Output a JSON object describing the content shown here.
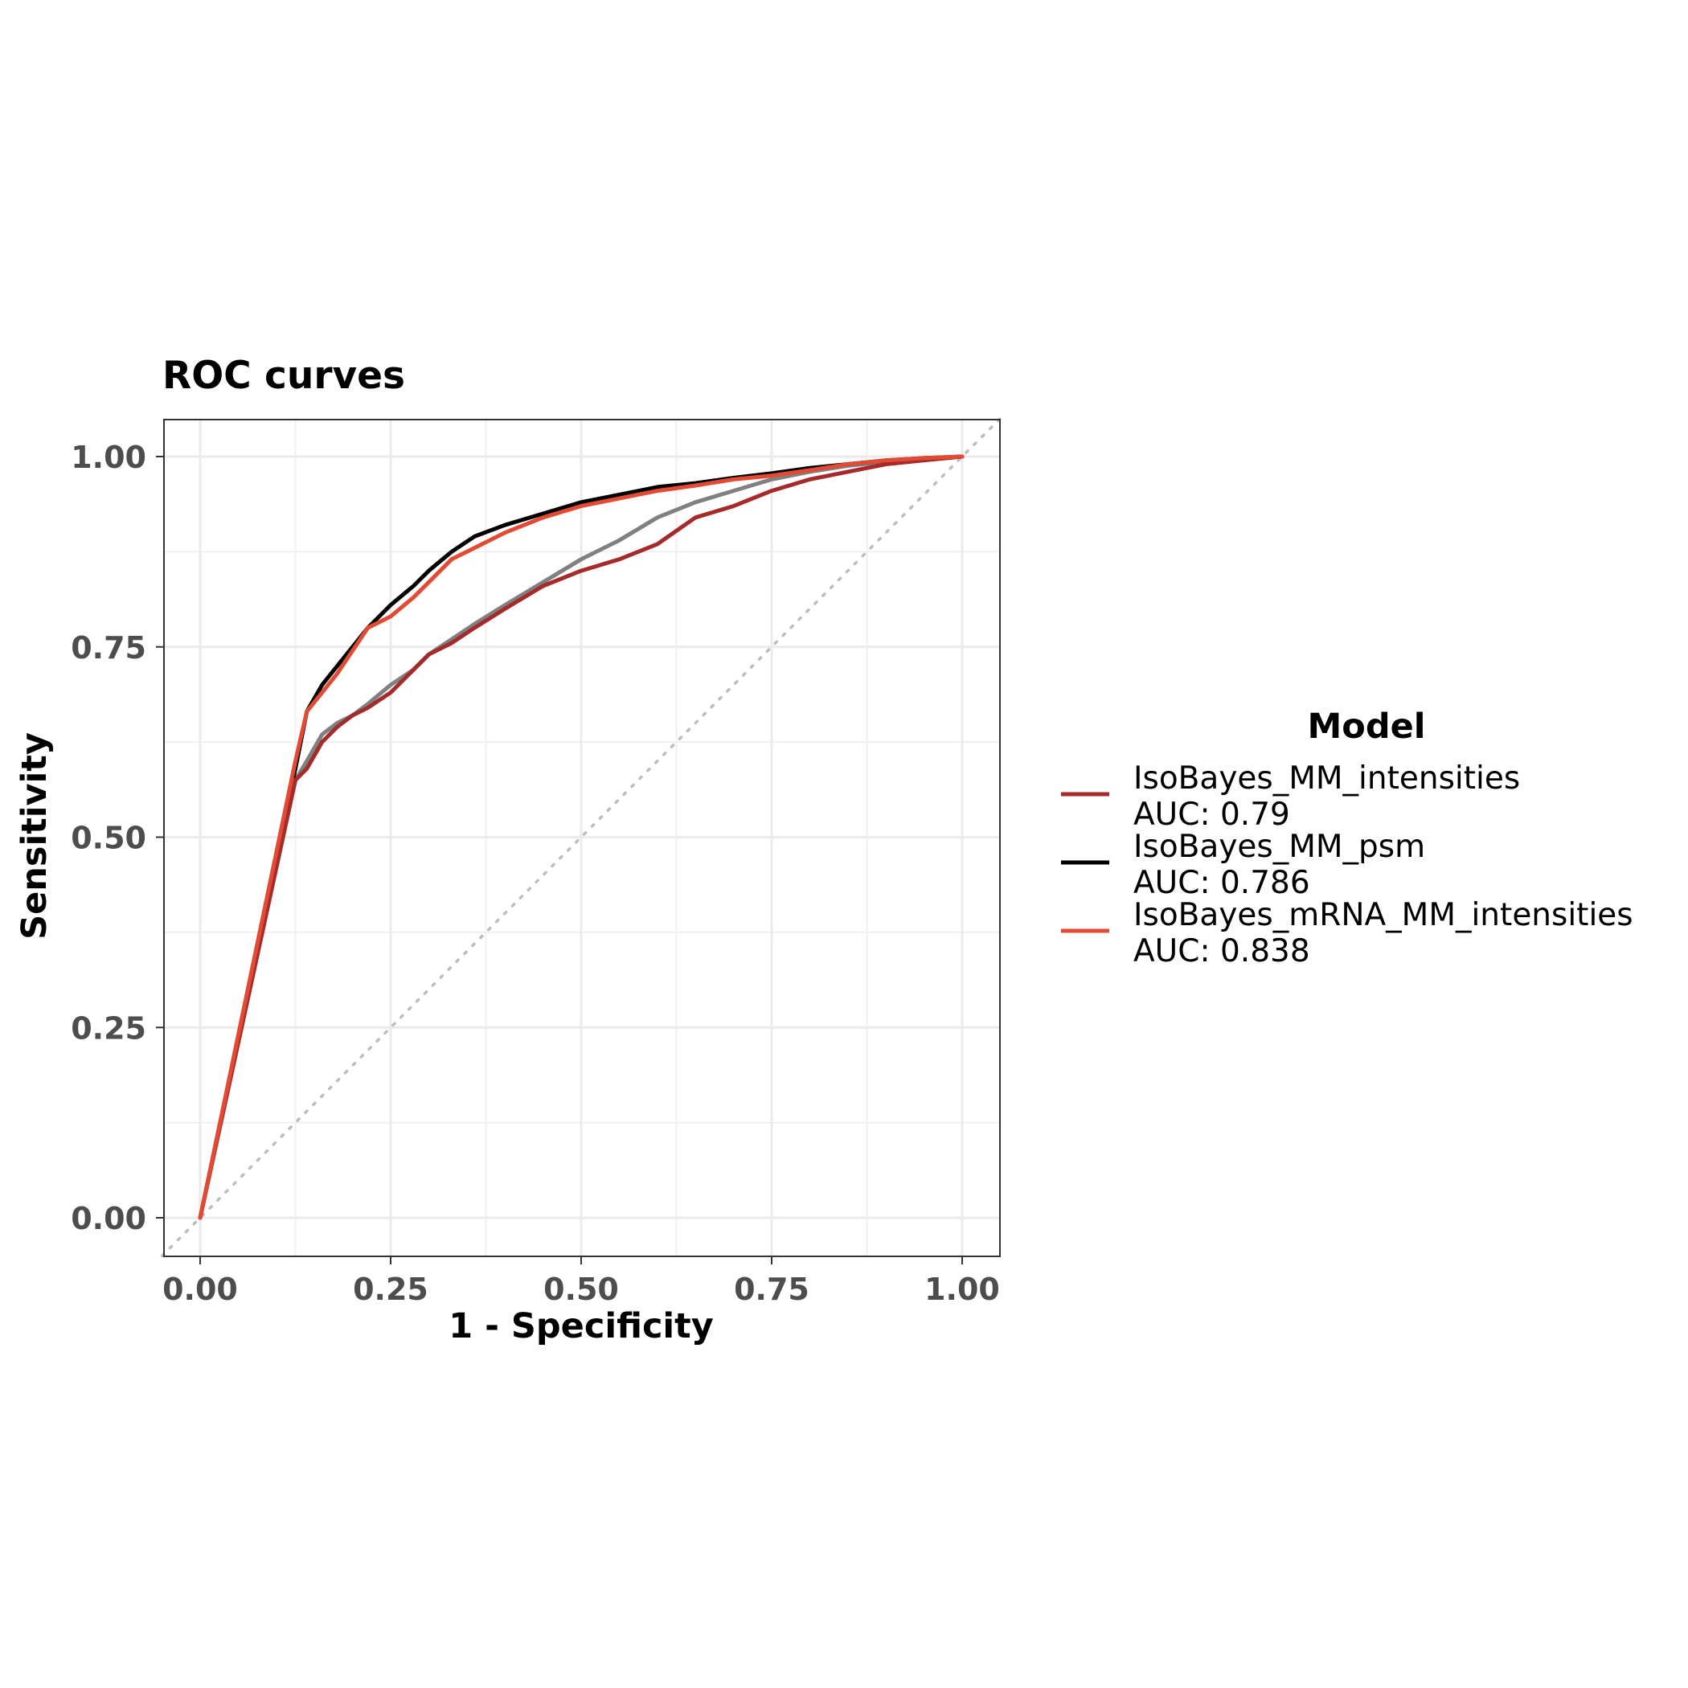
{
  "chart_data": {
    "type": "line",
    "title": "ROC curves",
    "xlabel": "1 - Specificity",
    "ylabel": "Sensitivity",
    "xlim": [
      0,
      1
    ],
    "ylim": [
      0,
      1
    ],
    "x_ticks": [
      "0.00",
      "0.25",
      "0.50",
      "0.75",
      "1.00"
    ],
    "y_ticks": [
      "0.00",
      "0.25",
      "0.50",
      "0.75",
      "1.00"
    ],
    "grid": true,
    "legend_position": "right",
    "legend_title": "Model",
    "reference_line": {
      "style": "dotted",
      "color": "#bdbdbd",
      "x": [
        0,
        1
      ],
      "y": [
        0,
        1
      ]
    },
    "series": [
      {
        "name": "IsoBayes_MM_intensities",
        "auc_label": "AUC: 0.79",
        "color": "#a52a2a",
        "x": [
          0,
          0.125,
          0.14,
          0.16,
          0.18,
          0.2,
          0.22,
          0.25,
          0.28,
          0.3,
          0.33,
          0.36,
          0.4,
          0.45,
          0.5,
          0.55,
          0.6,
          0.65,
          0.7,
          0.75,
          0.8,
          0.85,
          0.9,
          0.95,
          1.0
        ],
        "y": [
          0,
          0.575,
          0.59,
          0.625,
          0.645,
          0.66,
          0.67,
          0.69,
          0.72,
          0.74,
          0.755,
          0.775,
          0.8,
          0.83,
          0.85,
          0.865,
          0.885,
          0.92,
          0.935,
          0.955,
          0.97,
          0.98,
          0.99,
          0.995,
          1.0
        ]
      },
      {
        "name": "IsoBayes_MM_psm",
        "auc_label": "AUC: 0.786",
        "color": "#000000",
        "x": [
          0,
          0.125,
          0.14,
          0.16,
          0.18,
          0.2,
          0.22,
          0.25,
          0.28,
          0.3,
          0.33,
          0.36,
          0.4,
          0.45,
          0.5,
          0.55,
          0.6,
          0.65,
          0.7,
          0.75,
          0.8,
          0.85,
          0.9,
          0.95,
          1.0
        ],
        "y": [
          0,
          0.59,
          0.665,
          0.7,
          0.725,
          0.75,
          0.775,
          0.805,
          0.83,
          0.85,
          0.875,
          0.895,
          0.91,
          0.925,
          0.94,
          0.95,
          0.96,
          0.965,
          0.972,
          0.978,
          0.985,
          0.99,
          0.995,
          0.998,
          1.0
        ]
      },
      {
        "name": "IsoBayes_mRNA_MM_intensities",
        "auc_label": "AUC: 0.838",
        "color": "#e34a33",
        "x": [
          0,
          0.125,
          0.14,
          0.16,
          0.18,
          0.2,
          0.22,
          0.25,
          0.28,
          0.3,
          0.33,
          0.36,
          0.4,
          0.45,
          0.5,
          0.55,
          0.6,
          0.65,
          0.7,
          0.75,
          0.8,
          0.85,
          0.9,
          0.95,
          1.0
        ],
        "y": [
          0,
          0.6,
          0.665,
          0.69,
          0.715,
          0.745,
          0.775,
          0.79,
          0.815,
          0.835,
          0.865,
          0.88,
          0.9,
          0.92,
          0.935,
          0.945,
          0.955,
          0.962,
          0.97,
          0.975,
          0.982,
          0.99,
          0.995,
          0.998,
          1.0
        ]
      },
      {
        "name": "",
        "color": "#808080",
        "x": [
          0,
          0.125,
          0.14,
          0.16,
          0.18,
          0.2,
          0.22,
          0.25,
          0.28,
          0.3,
          0.33,
          0.36,
          0.4,
          0.45,
          0.5,
          0.55,
          0.6,
          0.65,
          0.7,
          0.75,
          0.8,
          0.85,
          0.9,
          0.95,
          1.0
        ],
        "y": [
          0,
          0.575,
          0.6,
          0.635,
          0.65,
          0.66,
          0.675,
          0.7,
          0.72,
          0.74,
          0.76,
          0.78,
          0.805,
          0.835,
          0.865,
          0.89,
          0.92,
          0.94,
          0.955,
          0.97,
          0.98,
          0.988,
          0.993,
          0.997,
          1.0
        ]
      }
    ]
  }
}
